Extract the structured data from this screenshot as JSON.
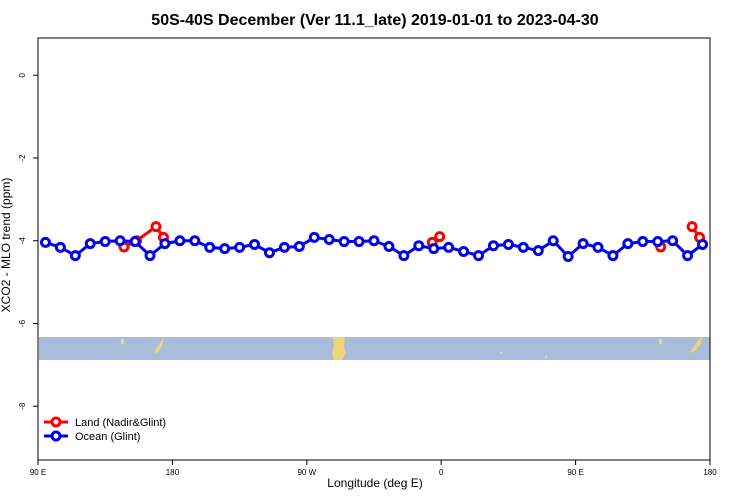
{
  "chart_data": {
    "type": "line",
    "title": "50S-40S December (Ver 11.1_late)   2019-01-01 to 2023-04-30",
    "x_label": "Longitude (deg E)",
    "y_label": "XCO2 - MLO trend (ppm)",
    "xlim": [
      90,
      540
    ],
    "ylim": [
      -9.3,
      0.9
    ],
    "xticks": [
      {
        "value": 90,
        "label": "90 E"
      },
      180,
      {
        "value": 270,
        "label": "90 W"
      },
      {
        "value": 360,
        "label": "0"
      },
      {
        "value": 450,
        "label": "90 E"
      },
      {
        "value": 540,
        "label": "180"
      }
    ],
    "yticks": [
      0,
      -2,
      -4,
      -6,
      -8
    ],
    "legend": "bottom-left",
    "series": [
      {
        "name": "Land (Nadir&Glint)",
        "color": "#ff0000",
        "x": [
          147.6,
          156,
          169,
          174,
          354,
          359,
          507,
          528,
          533
        ],
        "values": [
          -4.15,
          -4.0,
          -3.66,
          -3.92,
          -4.04,
          -3.9,
          -4.15,
          -3.66,
          -3.92
        ]
      },
      {
        "name": "Ocean (Glint)",
        "color": "#0000ee",
        "x": [
          95,
          105,
          115,
          125,
          135,
          145,
          155,
          165,
          175,
          185,
          195,
          205,
          215,
          225,
          235,
          245,
          255,
          265,
          275,
          285,
          295,
          305,
          315,
          325,
          335,
          345,
          355,
          365,
          375,
          385,
          395,
          405,
          415,
          425,
          435,
          445,
          455,
          465,
          475,
          485,
          495,
          505,
          515,
          525,
          535
        ],
        "values": [
          -4.04,
          -4.16,
          -4.36,
          -4.07,
          -4.02,
          -4.0,
          -4.02,
          -4.36,
          -4.07,
          -4.0,
          -4.0,
          -4.16,
          -4.19,
          -4.16,
          -4.09,
          -4.29,
          -4.16,
          -4.14,
          -3.92,
          -3.97,
          -4.02,
          -4.02,
          -4.0,
          -4.14,
          -4.36,
          -4.12,
          -4.19,
          -4.16,
          -4.26,
          -4.36,
          -4.12,
          -4.09,
          -4.16,
          -4.24,
          -4.0,
          -4.38,
          -4.07,
          -4.16,
          -4.36,
          -4.07,
          -4.02,
          -4.02,
          -4.0,
          -4.36,
          -4.09
        ]
      }
    ]
  }
}
